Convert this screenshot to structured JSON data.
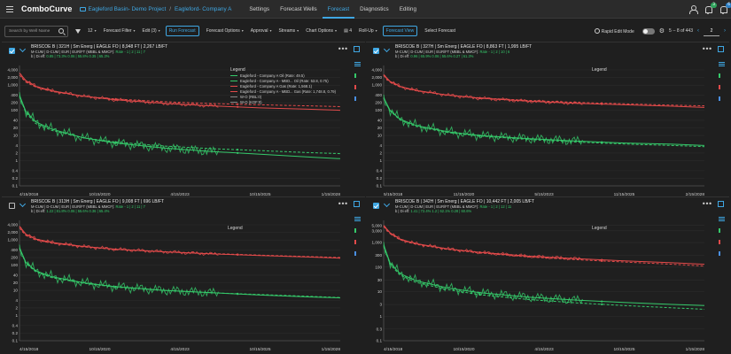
{
  "app": {
    "brand": "ComboCurve",
    "project": "Eagleford Basin- Demo Project",
    "scenario": "Eagleford- Company A",
    "nav": [
      "Settings",
      "Forecast Wells",
      "Forecast",
      "Diagnostics",
      "Editing"
    ],
    "active_nav": "Forecast",
    "notif_badge_1": "3",
    "notif_badge_2": "6"
  },
  "toolbar": {
    "search_placeholder": "Search by Well Name",
    "filter_count": "12",
    "forecast_filter": "Forecast Filter",
    "edit": "Edit (3)",
    "run_forecast": "Run Forecast",
    "forecast_options": "Forecast Options",
    "approval": "Approval",
    "streams": "Streams",
    "chart_options": "Chart Options",
    "columns": "4",
    "rollup": "Roll-Up",
    "forecast_view": "Forecast View",
    "select_forecast": "Select Forecast",
    "rapid_edit": "Rapid Edit Mode",
    "range": "5 -- 8 of 443",
    "page": "2"
  },
  "panels": [
    {
      "title": "BRISCOE B | 321H | Sm Energ | EAGLE FO | 8,948 FT | 2,267 LB/FT",
      "sub1": "M-CUM | D-CUM | EUR | EUR/FT (MBBL & MMCF):",
      "sub1_vals": "Rate - 1 | 2 | 11 | 7",
      "sub2": "b | Di eff:",
      "sub2_vals": "0.85 | 73.3%   0.06 | 55.8%   0.35 | 65.3%",
      "checked": true,
      "xticks": [
        "4/15/2018",
        "10/15/2020",
        "4/15/2023",
        "10/15/2025",
        "1/15/2028"
      ],
      "legend_title": "Legend",
      "legend_items": [
        {
          "label": "Eagleford - Company A Oil (Rate: 49.5)",
          "color": "#35c96a"
        },
        {
          "label": "Eagleford - Company A - MBD... Oil (Rate: 53.8, 0.75)",
          "color": "#35c96a"
        },
        {
          "label": "Eagleford - Company A Gas (Rate: 1,568.1)",
          "color": "#e24a4a"
        },
        {
          "label": "Eagleford - Company A - MBD... Gas (Rate: 1,748.8, 0.79)",
          "color": "#e24a4a"
        },
        {
          "label": "W-O (RBL:0)",
          "color": "#888888"
        },
        {
          "label": "W-O (KOF:0)",
          "color": "#888888"
        }
      ]
    },
    {
      "title": "BRISCOE B | 327H | Sm Energ | EAGLE FO | 8,863 FT | 1,995 LB/FT",
      "sub1": "M-CUM | D-CUM | EUR | EUR/FT (MBBL & MMCF):",
      "sub1_vals": "Rate - 1 | 2 | 10 | 6",
      "sub2": "b | Di eff:",
      "sub2_vals": "0.96 | 65.9%   0.06 | 55.6%   0.27 | 61.3%",
      "checked": true,
      "xticks": [
        "5/15/2018",
        "11/15/2020",
        "5/15/2023",
        "11/15/2025",
        "2/15/2028"
      ],
      "legend_title": "Legend",
      "legend_items": []
    },
    {
      "title": "BRISCOE B | 313H | Sm Energ | EAGLE FO | 9,008 FT | 696 LB/FT",
      "sub1": "M-CUM | D-CUM | EUR | EUR/FT (MBBL & MMCF):",
      "sub1_vals": "Rate - 1 | 2 | 11 | 7",
      "sub2": "b | Di eff:",
      "sub2_vals": "1.22 | 81.8%   0.06 | 55.6%   0.36 | 65.4%",
      "checked": false,
      "xticks": [
        "4/15/2018",
        "10/15/2020",
        "4/15/2023",
        "10/15/2025",
        "1/15/2028"
      ],
      "legend_title": "Legend",
      "legend_items": []
    },
    {
      "title": "BRISCOE B | 342H | Sm Energ | EAGLE FO | 10,442 FT | 2,005 LB/FT",
      "sub1": "M-CUM | D-CUM | EUR | EUR/FT (MBBL & MMCF):",
      "sub1_vals": "Rate - 1 | 2 | 12 | 11",
      "sub2": "b | Di eff:",
      "sub2_vals": "1.41 | 72.4%   1.2 | 62.1%   0.28 | 60.6%",
      "checked": true,
      "xticks": [
        "4/15/2018",
        "10/15/2020",
        "4/15/2023",
        "10/15/2025",
        "1/15/2028"
      ],
      "legend_title": "Legend",
      "legend_items": []
    }
  ],
  "chart_data": [
    {
      "type": "line",
      "scale": "log",
      "yticks": [
        "4,000",
        "2,000",
        "1,000",
        "400",
        "200",
        "100",
        "40",
        "20",
        "10",
        "4",
        "2",
        "1",
        "0.4",
        "0.2",
        "0.1"
      ],
      "ylim": [
        0.1,
        6000
      ],
      "x": [
        0,
        0.02,
        0.05,
        0.1,
        0.2,
        0.3,
        0.45,
        0.6,
        0.75,
        0.9,
        1.0
      ],
      "series": [
        {
          "color": "#e24a4a",
          "values": [
            3000,
            1500,
            900,
            600,
            360,
            260,
            190,
            150,
            125,
            110,
            100
          ]
        },
        {
          "color": "#e24a4a",
          "dashed": true,
          "values": [
            2500,
            1300,
            850,
            560,
            360,
            280,
            220,
            185,
            165,
            150,
            140
          ]
        },
        {
          "color": "#35c96a",
          "values": [
            400,
            90,
            35,
            18,
            8,
            5,
            3.2,
            2.3,
            1.8,
            1.4,
            1.2
          ]
        },
        {
          "color": "#35c96a",
          "dashed": true,
          "values": [
            350,
            80,
            30,
            16,
            8,
            5.5,
            3.8,
            3,
            2.5,
            2.1,
            1.9
          ]
        }
      ]
    },
    {
      "type": "line",
      "scale": "log",
      "yticks": [
        "4,000",
        "2,000",
        "1,000",
        "400",
        "200",
        "100",
        "40",
        "20",
        "10",
        "4",
        "2",
        "1",
        "0.4",
        "0.2",
        "0.1"
      ],
      "ylim": [
        0.1,
        6000
      ],
      "x": [
        0,
        0.02,
        0.05,
        0.1,
        0.2,
        0.3,
        0.45,
        0.6,
        0.75,
        0.9,
        1.0
      ],
      "series": [
        {
          "color": "#e24a4a",
          "values": [
            2600,
            1400,
            900,
            620,
            400,
            300,
            230,
            190,
            165,
            145,
            130
          ]
        },
        {
          "color": "#e24a4a",
          "dashed": true,
          "values": [
            2400,
            1300,
            850,
            600,
            400,
            310,
            245,
            205,
            180,
            160,
            150
          ]
        },
        {
          "color": "#35c96a",
          "values": [
            320,
            100,
            45,
            25,
            14,
            10,
            7.5,
            6,
            5,
            4.5,
            4
          ]
        },
        {
          "color": "#35c96a",
          "dashed": true,
          "values": [
            300,
            95,
            42,
            23,
            13,
            9.5,
            7,
            5.5,
            4.6,
            4,
            3.6
          ]
        }
      ]
    },
    {
      "type": "line",
      "scale": "log",
      "yticks": [
        "4,000",
        "2,000",
        "1,000",
        "400",
        "200",
        "100",
        "40",
        "20",
        "10",
        "4",
        "2",
        "1",
        "0.4",
        "0.2",
        "0.1"
      ],
      "ylim": [
        0.1,
        6000
      ],
      "x": [
        0,
        0.02,
        0.05,
        0.1,
        0.2,
        0.3,
        0.45,
        0.6,
        0.75,
        0.9,
        1.0
      ],
      "series": [
        {
          "color": "#e24a4a",
          "values": [
            3500,
            1700,
            1100,
            800,
            550,
            430,
            340,
            280,
            240,
            210,
            190
          ]
        },
        {
          "color": "#e24a4a",
          "dashed": true,
          "values": [
            3000,
            1500,
            1000,
            750,
            530,
            420,
            340,
            290,
            250,
            220,
            200
          ]
        },
        {
          "color": "#35c96a",
          "values": [
            500,
            130,
            60,
            35,
            20,
            14,
            10,
            8,
            6.5,
            5.5,
            5
          ]
        },
        {
          "color": "#35c96a",
          "dashed": true,
          "values": [
            450,
            120,
            55,
            32,
            19,
            13.5,
            10,
            8,
            6.8,
            5.8,
            5.2
          ]
        }
      ]
    },
    {
      "type": "line",
      "scale": "log",
      "yticks": [
        "5,000",
        "3,000",
        "1,000",
        "300",
        "100",
        "30",
        "10",
        "3",
        "1",
        "0.3",
        "0.1"
      ],
      "ylim": [
        0.1,
        8000
      ],
      "x": [
        0,
        0.02,
        0.05,
        0.1,
        0.2,
        0.3,
        0.45,
        0.6,
        0.75,
        0.9,
        1.0
      ],
      "series": [
        {
          "color": "#e24a4a",
          "values": [
            5000,
            2500,
            1400,
            900,
            550,
            400,
            280,
            220,
            180,
            150,
            130
          ]
        },
        {
          "color": "#e24a4a",
          "dashed": true,
          "values": [
            4500,
            2300,
            1300,
            850,
            520,
            380,
            260,
            200,
            160,
            130,
            110
          ]
        },
        {
          "color": "#35c96a",
          "values": [
            800,
            150,
            55,
            28,
            14,
            9,
            6,
            4.5,
            3.6,
            3,
            2.7
          ]
        },
        {
          "color": "#35c96a",
          "dashed": true,
          "values": [
            700,
            130,
            48,
            24,
            12,
            7.5,
            4.8,
            3.5,
            2.7,
            2.2,
            1.9
          ]
        }
      ]
    }
  ]
}
